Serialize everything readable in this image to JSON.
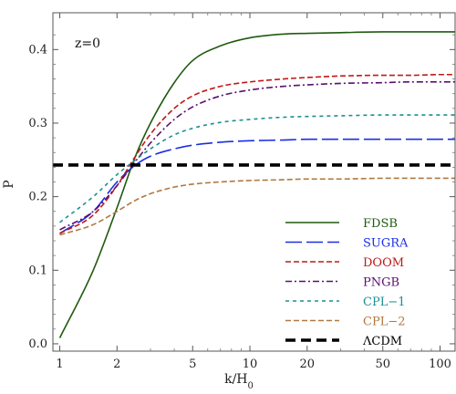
{
  "chart_data": {
    "type": "line",
    "annotation": "z=0",
    "xlabel": "k/H",
    "xlabel_sub": "0",
    "ylabel": "P",
    "x_scale": "log",
    "xlim": [
      0.92,
      120
    ],
    "ylim": [
      -0.01,
      0.45
    ],
    "x_ticks": [
      {
        "value": 1,
        "label": "1"
      },
      {
        "value": 2,
        "label": "2"
      },
      {
        "value": 5,
        "label": "5"
      },
      {
        "value": 10,
        "label": "10"
      },
      {
        "value": 20,
        "label": "20"
      },
      {
        "value": 50,
        "label": "50"
      },
      {
        "value": 100,
        "label": "100"
      }
    ],
    "y_ticks": [
      {
        "value": 0.0,
        "label": "0.0"
      },
      {
        "value": 0.1,
        "label": "0.1"
      },
      {
        "value": 0.2,
        "label": "0.2"
      },
      {
        "value": 0.3,
        "label": "0.3"
      },
      {
        "value": 0.4,
        "label": "0.4"
      }
    ],
    "grid": false,
    "legend_position": "bottom-right",
    "x": [
      1,
      1.5,
      2,
      2.5,
      3,
      4,
      5,
      7,
      10,
      15,
      20,
      30,
      50,
      70,
      100,
      120
    ],
    "series": [
      {
        "name": "FDSB",
        "color": "#1f5a10",
        "dash": "solid",
        "values": [
          0.008,
          0.1,
          0.185,
          0.255,
          0.3,
          0.355,
          0.385,
          0.405,
          0.416,
          0.421,
          0.422,
          0.423,
          0.424,
          0.424,
          0.424,
          0.424
        ]
      },
      {
        "name": "SUGRA",
        "color": "#1a2ee6",
        "dash": "longdash",
        "values": [
          0.15,
          0.18,
          0.22,
          0.243,
          0.255,
          0.265,
          0.27,
          0.274,
          0.276,
          0.277,
          0.278,
          0.278,
          0.278,
          0.278,
          0.278,
          0.278
        ]
      },
      {
        "name": "DOOM",
        "color": "#c01818",
        "dash": "dash",
        "values": [
          0.15,
          0.175,
          0.215,
          0.255,
          0.285,
          0.32,
          0.337,
          0.35,
          0.356,
          0.36,
          0.362,
          0.364,
          0.365,
          0.365,
          0.366,
          0.366
        ]
      },
      {
        "name": "PNGB",
        "color": "#5a1070",
        "dash": "dashdot",
        "values": [
          0.155,
          0.18,
          0.215,
          0.248,
          0.273,
          0.305,
          0.322,
          0.337,
          0.345,
          0.35,
          0.352,
          0.354,
          0.355,
          0.356,
          0.356,
          0.356
        ]
      },
      {
        "name": "CPL−1",
        "color": "#1b8f92",
        "dash": "shortdash",
        "values": [
          0.165,
          0.2,
          0.23,
          0.25,
          0.265,
          0.284,
          0.293,
          0.301,
          0.305,
          0.308,
          0.309,
          0.31,
          0.311,
          0.311,
          0.311,
          0.311
        ]
      },
      {
        "name": "CPL−2",
        "color": "#b07840",
        "dash": "dash",
        "values": [
          0.148,
          0.162,
          0.18,
          0.195,
          0.204,
          0.213,
          0.217,
          0.22,
          0.222,
          0.223,
          0.224,
          0.224,
          0.225,
          0.225,
          0.225,
          0.225
        ]
      },
      {
        "name": "ΛCDM",
        "color": "#000000",
        "dash": "thickdash",
        "values": [
          0.243,
          0.243,
          0.243,
          0.243,
          0.243,
          0.243,
          0.243,
          0.243,
          0.243,
          0.243,
          0.243,
          0.243,
          0.243,
          0.243,
          0.243,
          0.243
        ]
      }
    ]
  }
}
